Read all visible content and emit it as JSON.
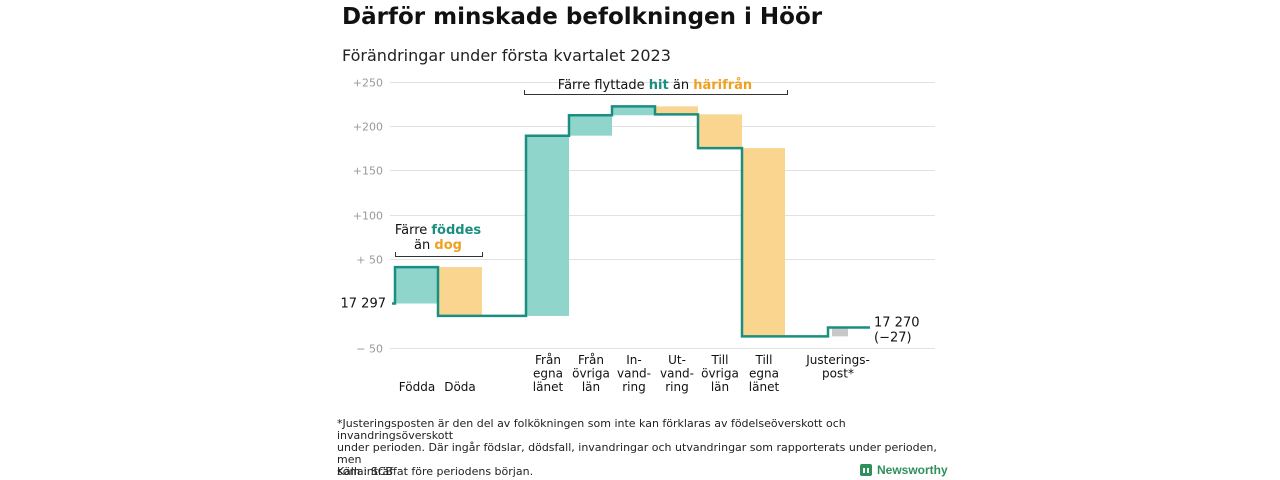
{
  "title": "Därför minskade befolkningen i Höör",
  "subtitle": "Förändringar under första kvartalet 2023",
  "chart_data": {
    "type": "waterfall",
    "yticks": [
      "+250",
      "+200",
      "+150",
      "+100",
      "+ 50",
      "− 50"
    ],
    "ytick_values": [
      250,
      200,
      150,
      100,
      50,
      -50
    ],
    "ylim": [
      -58,
      258
    ],
    "start_label": "17 297",
    "end_label": "17 270",
    "end_change_label": "(−27)",
    "steps": [
      {
        "label": "Födda",
        "from": 0,
        "to": 41,
        "kind": "plus"
      },
      {
        "label": "Döda",
        "from": 41,
        "to": -14,
        "kind": "minus"
      },
      {
        "label": "Från\negna\nlänet",
        "from": -14,
        "to": 189,
        "kind": "plus"
      },
      {
        "label": "Från\növriga\nlän",
        "from": 189,
        "to": 212,
        "kind": "plus"
      },
      {
        "label": "In-\nvand-\nring",
        "from": 212,
        "to": 222,
        "kind": "plus"
      },
      {
        "label": "Ut-\nvand-\nring",
        "from": 222,
        "to": 213,
        "kind": "minus"
      },
      {
        "label": "Till\növriga\nlän",
        "from": 213,
        "to": 175,
        "kind": "minus"
      },
      {
        "label": "Till\negna\nlänet",
        "from": 175,
        "to": -37,
        "kind": "minus"
      },
      {
        "label": "Justerings-\npost*",
        "from": -37,
        "to": -27,
        "kind": "adjust"
      }
    ],
    "annotations": {
      "births": {
        "l1_pre": "Färre ",
        "l1_hi": "föddes",
        "l2_pre": "än ",
        "l2_hi": "dog"
      },
      "moves": {
        "pre": "Färre flyttade ",
        "hi1": "hit",
        "mid": " än ",
        "hi2": "härifrån"
      }
    },
    "colors": {
      "plus": "#8fd5cc",
      "minus": "#fad590",
      "adjust": "#c8c8c8",
      "line": "#1a8f80",
      "hit": "#1a8f80",
      "dog": "#f0a020",
      "grid": "#e2e2e2",
      "axis": "#999999"
    }
  },
  "footnote": "*Justeringsposten är den del av folkökningen som inte kan förklaras av födelseöverskott och invandringsöverskott\nunder perioden. Där ingår födslar, dödsfall, invandringar och utvandringar som rapporterats under perioden, men\nsom inträffat före periodens början.",
  "source": "Källa: SCB",
  "brand": "Newsworthy"
}
